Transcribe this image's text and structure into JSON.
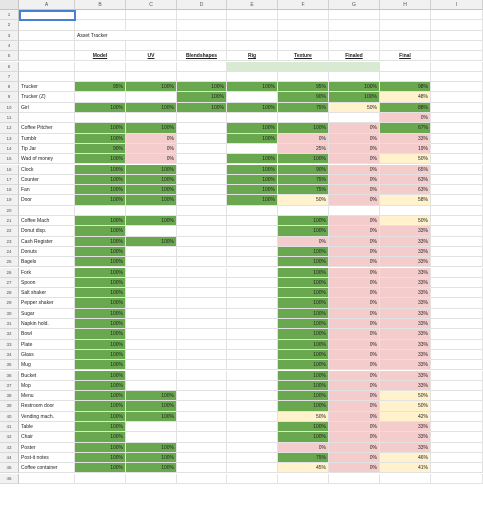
{
  "colors": {
    "green": "#6aa84f",
    "red": "#f4cccc",
    "yellow": "#fff2cc",
    "lightgreen": "#d9ead3"
  },
  "columns": [
    "A",
    "B",
    "C",
    "D",
    "E",
    "F",
    "G",
    "H",
    "I"
  ],
  "title": "Asset Tracker",
  "headers": [
    "Model",
    "UV",
    "Blendshapes",
    "Rig",
    "Texture",
    "Finaled",
    "Final"
  ],
  "rows": [
    {
      "r": 1
    },
    {
      "r": 2
    },
    {
      "r": 3,
      "title": true
    },
    {
      "r": 4
    },
    {
      "r": 5,
      "header": true
    },
    {
      "r": 6,
      "band": true
    },
    {
      "r": 7
    },
    {
      "r": 8,
      "label": "Trucker",
      "vals": [
        "95%",
        "100%",
        "100%",
        "100%",
        "95%",
        "100%",
        "98%"
      ],
      "c": [
        "g",
        "g",
        "g",
        "g",
        "g",
        "g",
        "g"
      ]
    },
    {
      "r": 9,
      "label": "Trucker (Z)",
      "vals": [
        "",
        "",
        "100%",
        "",
        "90%",
        "100%",
        "48%"
      ],
      "c": [
        "",
        "",
        "g",
        "",
        "g",
        "g",
        "y"
      ]
    },
    {
      "r": 10,
      "label": "Girl",
      "vals": [
        "100%",
        "100%",
        "100%",
        "100%",
        "75%",
        "50%",
        "88%"
      ],
      "c": [
        "g",
        "g",
        "g",
        "g",
        "g",
        "y",
        "g"
      ]
    },
    {
      "r": 11,
      "vals": [
        "",
        "",
        "",
        "",
        "",
        "",
        "0%"
      ],
      "c": [
        "",
        "",
        "",
        "",
        "",
        "",
        "r"
      ]
    },
    {
      "r": 12,
      "label": "Coffee Pitcher",
      "vals": [
        "100%",
        "100%",
        "",
        "100%",
        "100%",
        "0%",
        "67%"
      ],
      "c": [
        "g",
        "g",
        "",
        "g",
        "g",
        "r",
        "g"
      ]
    },
    {
      "r": 13,
      "label": "Tumblr",
      "vals": [
        "100%",
        "0%",
        "",
        "100%",
        "0%",
        "0%",
        "33%"
      ],
      "c": [
        "g",
        "r",
        "",
        "g",
        "r",
        "r",
        "r"
      ]
    },
    {
      "r": 14,
      "label": "Tip Jar",
      "vals": [
        "90%",
        "0%",
        "",
        "",
        "25%",
        "0%",
        "19%"
      ],
      "c": [
        "g",
        "r",
        "",
        "",
        "r",
        "r",
        "r"
      ]
    },
    {
      "r": 15,
      "label": "Wad of money",
      "vals": [
        "100%",
        "0%",
        "",
        "100%",
        "100%",
        "0%",
        "50%"
      ],
      "c": [
        "g",
        "r",
        "",
        "g",
        "g",
        "r",
        "y"
      ]
    },
    {
      "r": 16,
      "label": "Clock",
      "vals": [
        "100%",
        "100%",
        "",
        "100%",
        "90%",
        "0%",
        "65%"
      ],
      "c": [
        "g",
        "g",
        "",
        "g",
        "g",
        "r",
        "r"
      ]
    },
    {
      "r": 17,
      "label": "Counter",
      "vals": [
        "100%",
        "100%",
        "",
        "100%",
        "75%",
        "0%",
        "63%"
      ],
      "c": [
        "g",
        "g",
        "",
        "g",
        "g",
        "r",
        "r"
      ]
    },
    {
      "r": 18,
      "label": "Fan",
      "vals": [
        "100%",
        "100%",
        "",
        "100%",
        "75%",
        "0%",
        "63%"
      ],
      "c": [
        "g",
        "g",
        "",
        "g",
        "g",
        "r",
        "r"
      ]
    },
    {
      "r": 19,
      "label": "Door",
      "vals": [
        "100%",
        "100%",
        "",
        "100%",
        "50%",
        "0%",
        "58%"
      ],
      "c": [
        "g",
        "g",
        "",
        "g",
        "y",
        "r",
        "y"
      ]
    },
    {
      "r": 20
    },
    {
      "r": 21,
      "label": "Coffee Mach",
      "vals": [
        "100%",
        "100%",
        "",
        "",
        "100%",
        "0%",
        "50%"
      ],
      "c": [
        "g",
        "g",
        "",
        "",
        "g",
        "r",
        "y"
      ]
    },
    {
      "r": 22,
      "label": "Donut disp.",
      "vals": [
        "100%",
        "",
        "",
        "",
        "100%",
        "0%",
        "33%"
      ],
      "c": [
        "g",
        "",
        "",
        "",
        "g",
        "r",
        "r"
      ]
    },
    {
      "r": 23,
      "label": "Cash Register",
      "vals": [
        "100%",
        "100%",
        "",
        "",
        "0%",
        "0%",
        "33%"
      ],
      "c": [
        "g",
        "g",
        "",
        "",
        "r",
        "r",
        "r"
      ]
    },
    {
      "r": 24,
      "label": "Donuts",
      "vals": [
        "100%",
        "",
        "",
        "",
        "100%",
        "0%",
        "33%"
      ],
      "c": [
        "g",
        "",
        "",
        "",
        "g",
        "r",
        "r"
      ]
    },
    {
      "r": 25,
      "label": "Bagels",
      "vals": [
        "100%",
        "",
        "",
        "",
        "100%",
        "0%",
        "33%"
      ],
      "c": [
        "g",
        "",
        "",
        "",
        "g",
        "r",
        "r"
      ]
    },
    {
      "r": 26,
      "label": "Fork",
      "vals": [
        "100%",
        "",
        "",
        "",
        "100%",
        "0%",
        "33%"
      ],
      "c": [
        "g",
        "",
        "",
        "",
        "g",
        "r",
        "r"
      ]
    },
    {
      "r": 27,
      "label": "Spoon",
      "vals": [
        "100%",
        "",
        "",
        "",
        "100%",
        "0%",
        "33%"
      ],
      "c": [
        "g",
        "",
        "",
        "",
        "g",
        "r",
        "r"
      ]
    },
    {
      "r": 28,
      "label": "Salt shaker",
      "vals": [
        "100%",
        "",
        "",
        "",
        "100%",
        "0%",
        "33%"
      ],
      "c": [
        "g",
        "",
        "",
        "",
        "g",
        "r",
        "r"
      ]
    },
    {
      "r": 29,
      "label": "Pepper shaker",
      "vals": [
        "100%",
        "",
        "",
        "",
        "100%",
        "0%",
        "33%"
      ],
      "c": [
        "g",
        "",
        "",
        "",
        "g",
        "r",
        "r"
      ]
    },
    {
      "r": 30,
      "label": "Sugar",
      "vals": [
        "100%",
        "",
        "",
        "",
        "100%",
        "0%",
        "33%"
      ],
      "c": [
        "g",
        "",
        "",
        "",
        "g",
        "r",
        "r"
      ]
    },
    {
      "r": 31,
      "label": "Napkin hold.",
      "vals": [
        "100%",
        "",
        "",
        "",
        "100%",
        "0%",
        "33%"
      ],
      "c": [
        "g",
        "",
        "",
        "",
        "g",
        "r",
        "r"
      ]
    },
    {
      "r": 32,
      "label": "Bowl",
      "vals": [
        "100%",
        "",
        "",
        "",
        "100%",
        "0%",
        "33%"
      ],
      "c": [
        "g",
        "",
        "",
        "",
        "g",
        "r",
        "r"
      ]
    },
    {
      "r": 33,
      "label": "Plate",
      "vals": [
        "100%",
        "",
        "",
        "",
        "100%",
        "0%",
        "33%"
      ],
      "c": [
        "g",
        "",
        "",
        "",
        "g",
        "r",
        "r"
      ]
    },
    {
      "r": 34,
      "label": "Glass",
      "vals": [
        "100%",
        "",
        "",
        "",
        "100%",
        "0%",
        "33%"
      ],
      "c": [
        "g",
        "",
        "",
        "",
        "g",
        "r",
        "r"
      ]
    },
    {
      "r": 35,
      "label": "Mug",
      "vals": [
        "100%",
        "",
        "",
        "",
        "100%",
        "0%",
        "33%"
      ],
      "c": [
        "g",
        "",
        "",
        "",
        "g",
        "r",
        "r"
      ]
    },
    {
      "r": 36,
      "label": "Bucket",
      "vals": [
        "100%",
        "",
        "",
        "",
        "100%",
        "0%",
        "33%"
      ],
      "c": [
        "g",
        "",
        "",
        "",
        "g",
        "r",
        "r"
      ]
    },
    {
      "r": 37,
      "label": "Mop",
      "vals": [
        "100%",
        "",
        "",
        "",
        "100%",
        "0%",
        "33%"
      ],
      "c": [
        "g",
        "",
        "",
        "",
        "g",
        "r",
        "r"
      ]
    },
    {
      "r": 38,
      "label": "Menu",
      "vals": [
        "100%",
        "100%",
        "",
        "",
        "100%",
        "0%",
        "50%"
      ],
      "c": [
        "g",
        "g",
        "",
        "",
        "g",
        "r",
        "y"
      ]
    },
    {
      "r": 39,
      "label": "Restroom door",
      "vals": [
        "100%",
        "100%",
        "",
        "",
        "100%",
        "0%",
        "50%"
      ],
      "c": [
        "g",
        "g",
        "",
        "",
        "g",
        "r",
        "y"
      ]
    },
    {
      "r": 40,
      "label": "Vending mach.",
      "vals": [
        "100%",
        "100%",
        "",
        "",
        "50%",
        "0%",
        "42%"
      ],
      "c": [
        "g",
        "g",
        "",
        "",
        "y",
        "r",
        "y"
      ]
    },
    {
      "r": 41,
      "label": "Table",
      "vals": [
        "100%",
        "",
        "",
        "",
        "100%",
        "0%",
        "33%"
      ],
      "c": [
        "g",
        "",
        "",
        "",
        "g",
        "r",
        "r"
      ]
    },
    {
      "r": 42,
      "label": "Chair",
      "vals": [
        "100%",
        "",
        "",
        "",
        "100%",
        "0%",
        "33%"
      ],
      "c": [
        "g",
        "",
        "",
        "",
        "g",
        "r",
        "r"
      ]
    },
    {
      "r": 43,
      "label": "Poster",
      "vals": [
        "100%",
        "100%",
        "",
        "",
        "0%",
        "0%",
        "33%"
      ],
      "c": [
        "g",
        "g",
        "",
        "",
        "r",
        "r",
        "r"
      ]
    },
    {
      "r": 44,
      "label": "Post-it notes",
      "vals": [
        "100%",
        "100%",
        "",
        "",
        "75%",
        "0%",
        "46%"
      ],
      "c": [
        "g",
        "g",
        "",
        "",
        "g",
        "r",
        "y"
      ]
    },
    {
      "r": 45,
      "label": "Coffee container",
      "vals": [
        "100%",
        "100%",
        "",
        "",
        "45%",
        "0%",
        "41%"
      ],
      "c": [
        "g",
        "g",
        "",
        "",
        "y",
        "r",
        "y"
      ]
    },
    {
      "r": 46
    }
  ]
}
